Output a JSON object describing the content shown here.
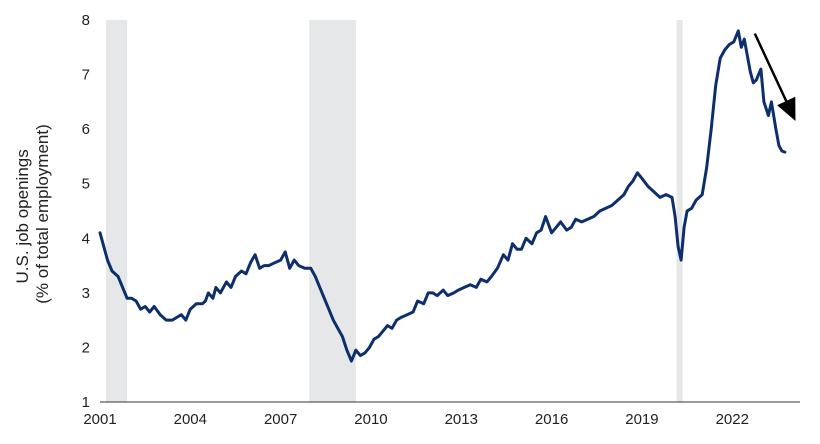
{
  "chart_data": {
    "type": "line",
    "title": "",
    "ylabel_lines": [
      "U.S. job openings",
      "(% of total employment)"
    ],
    "xlabel": "",
    "x_ticks": [
      "2001",
      "2004",
      "2007",
      "2010",
      "2013",
      "2016",
      "2019",
      "2022"
    ],
    "y_ticks": [
      "1",
      "2",
      "3",
      "4",
      "5",
      "6",
      "7",
      "8"
    ],
    "xlim": [
      2001.0,
      2024.25
    ],
    "ylim": [
      1,
      8
    ],
    "grid": false,
    "legend": "none",
    "colors": {
      "line": "#0d2f6b",
      "recession": "#e6e7e8",
      "axis": "#333333",
      "arrow": "#000000"
    },
    "recessions": [
      {
        "start": 2001.2,
        "end": 2001.9
      },
      {
        "start": 2007.95,
        "end": 2009.5
      },
      {
        "start": 2020.15,
        "end": 2020.35
      }
    ],
    "trend_arrow": {
      "from": [
        2022.75,
        7.75
      ],
      "to": [
        2024.1,
        6.15
      ]
    },
    "series": [
      {
        "x": [
          2001.0,
          2001.1,
          2001.25,
          2001.4,
          2001.6,
          2001.75,
          2001.9,
          2002.05,
          2002.2,
          2002.35,
          2002.5,
          2002.65,
          2002.8,
          2003.0,
          2003.2,
          2003.4,
          2003.55,
          2003.7,
          2003.85,
          2004.0,
          2004.2,
          2004.4,
          2004.5,
          2004.6,
          2004.75,
          2004.85,
          2005.0,
          2005.2,
          2005.35,
          2005.5,
          2005.7,
          2005.85,
          2006.0,
          2006.15,
          2006.3,
          2006.45,
          2006.6,
          2006.8,
          2007.0,
          2007.15,
          2007.3,
          2007.45,
          2007.6,
          2007.8,
          2008.0,
          2008.15,
          2008.3,
          2008.45,
          2008.6,
          2008.75,
          2008.9,
          2009.05,
          2009.2,
          2009.35,
          2009.5,
          2009.65,
          2009.8,
          2009.95,
          2010.1,
          2010.25,
          2010.4,
          2010.55,
          2010.7,
          2010.85,
          2011.0,
          2011.2,
          2011.4,
          2011.55,
          2011.75,
          2011.9,
          2012.05,
          2012.2,
          2012.4,
          2012.55,
          2012.75,
          2012.9,
          2013.1,
          2013.3,
          2013.5,
          2013.65,
          2013.85,
          2014.0,
          2014.2,
          2014.4,
          2014.55,
          2014.7,
          2014.85,
          2015.0,
          2015.15,
          2015.35,
          2015.5,
          2015.65,
          2015.8,
          2016.0,
          2016.15,
          2016.3,
          2016.5,
          2016.65,
          2016.8,
          2017.0,
          2017.2,
          2017.4,
          2017.6,
          2017.8,
          2018.0,
          2018.2,
          2018.4,
          2018.55,
          2018.7,
          2018.85,
          2019.0,
          2019.2,
          2019.4,
          2019.6,
          2019.8,
          2020.0,
          2020.1,
          2020.2,
          2020.3,
          2020.4,
          2020.5,
          2020.65,
          2020.8,
          2021.0,
          2021.15,
          2021.3,
          2021.45,
          2021.6,
          2021.75,
          2021.9,
          2022.05,
          2022.2,
          2022.3,
          2022.4,
          2022.5,
          2022.6,
          2022.7,
          2022.8,
          2022.95,
          2023.05,
          2023.2,
          2023.3,
          2023.45,
          2023.55,
          2023.65,
          2023.75
        ],
        "values": [
          4.1,
          3.9,
          3.6,
          3.4,
          3.3,
          3.1,
          2.9,
          2.9,
          2.85,
          2.7,
          2.75,
          2.65,
          2.75,
          2.6,
          2.5,
          2.5,
          2.55,
          2.6,
          2.5,
          2.7,
          2.8,
          2.8,
          2.85,
          3.0,
          2.9,
          3.1,
          3.0,
          3.2,
          3.1,
          3.3,
          3.4,
          3.35,
          3.55,
          3.7,
          3.45,
          3.5,
          3.5,
          3.55,
          3.6,
          3.75,
          3.45,
          3.6,
          3.5,
          3.45,
          3.45,
          3.3,
          3.1,
          2.9,
          2.7,
          2.5,
          2.35,
          2.2,
          1.95,
          1.75,
          1.95,
          1.85,
          1.9,
          2.0,
          2.15,
          2.2,
          2.3,
          2.4,
          2.35,
          2.5,
          2.55,
          2.6,
          2.65,
          2.85,
          2.8,
          3.0,
          3.0,
          2.95,
          3.05,
          2.95,
          3.0,
          3.05,
          3.1,
          3.15,
          3.1,
          3.25,
          3.2,
          3.3,
          3.45,
          3.7,
          3.6,
          3.9,
          3.8,
          3.8,
          4.0,
          3.9,
          4.1,
          4.15,
          4.4,
          4.1,
          4.2,
          4.3,
          4.15,
          4.2,
          4.35,
          4.3,
          4.35,
          4.4,
          4.5,
          4.55,
          4.6,
          4.7,
          4.8,
          4.95,
          5.05,
          5.2,
          5.1,
          4.95,
          4.85,
          4.75,
          4.8,
          4.75,
          4.4,
          3.85,
          3.6,
          4.2,
          4.5,
          4.55,
          4.7,
          4.8,
          5.3,
          6.0,
          6.8,
          7.3,
          7.45,
          7.55,
          7.6,
          7.8,
          7.5,
          7.65,
          7.35,
          7.05,
          6.85,
          6.9,
          7.1,
          6.5,
          6.25,
          6.5,
          6.0,
          5.7,
          5.6,
          5.58
        ]
      }
    ]
  }
}
